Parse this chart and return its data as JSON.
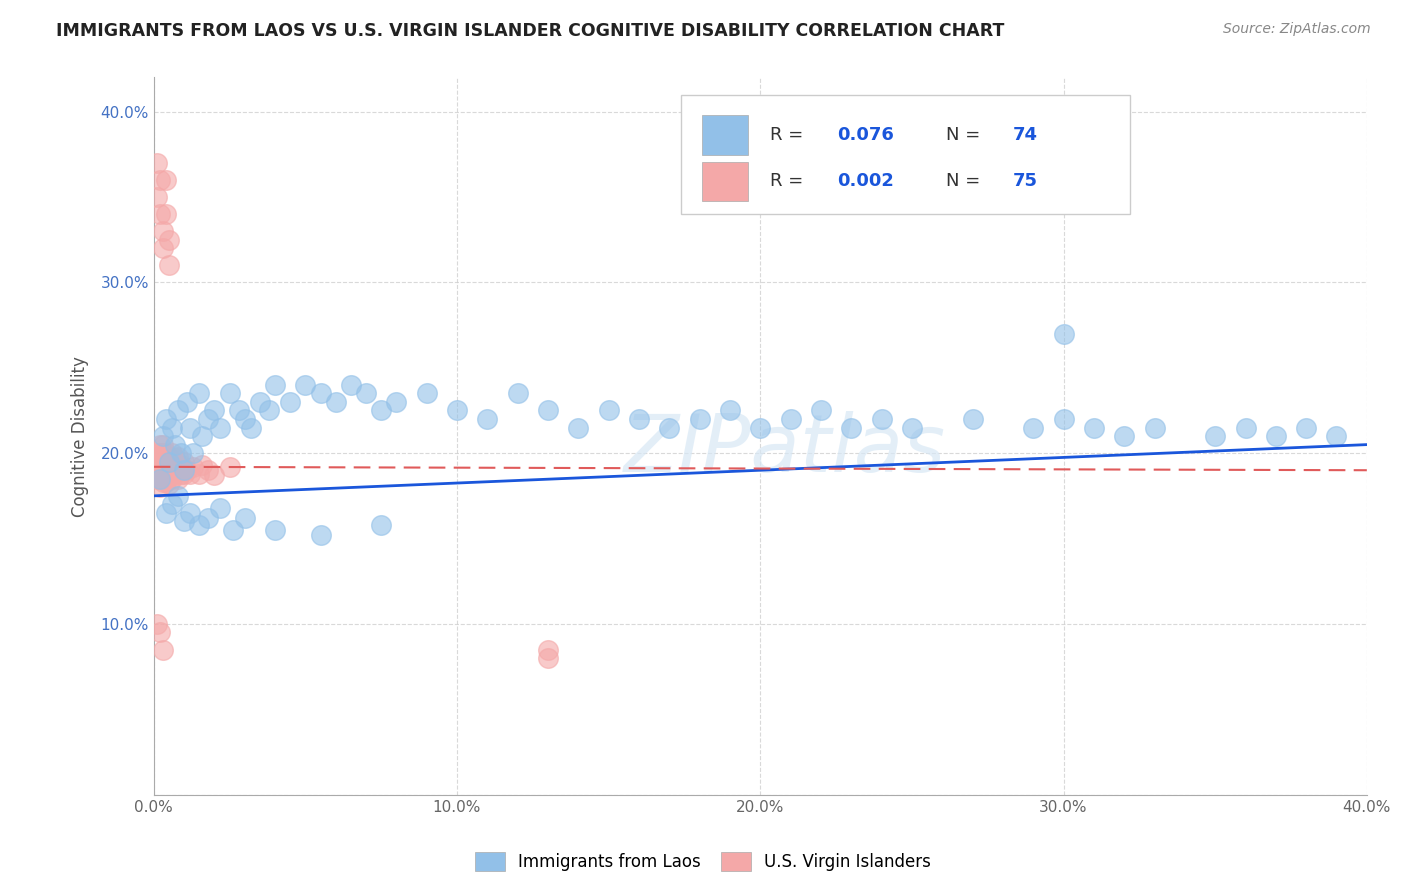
{
  "title": "IMMIGRANTS FROM LAOS VS U.S. VIRGIN ISLANDER COGNITIVE DISABILITY CORRELATION CHART",
  "source": "Source: ZipAtlas.com",
  "ylabel": "Cognitive Disability",
  "xlim": [
    0.0,
    0.4
  ],
  "ylim": [
    0.0,
    0.42
  ],
  "yticks": [
    0.0,
    0.1,
    0.2,
    0.3,
    0.4
  ],
  "xticks": [
    0.0,
    0.1,
    0.2,
    0.3,
    0.4
  ],
  "ytick_labels": [
    "",
    "10.0%",
    "20.0%",
    "30.0%",
    "40.0%"
  ],
  "xtick_labels": [
    "0.0%",
    "10.0%",
    "20.0%",
    "30.0%",
    "40.0%"
  ],
  "blue_R": 0.076,
  "blue_N": 74,
  "pink_R": 0.002,
  "pink_N": 75,
  "blue_color": "#92c0e8",
  "pink_color": "#f4a8a8",
  "blue_line_color": "#1a56db",
  "pink_line_color": "#e05a5a",
  "legend_label_blue": "Immigrants from Laos",
  "legend_label_pink": "U.S. Virgin Islanders",
  "background_color": "#ffffff",
  "grid_color": "#d0d0d0",
  "watermark_text": "ZIPatlas",
  "blue_scatter_x": [
    0.002,
    0.003,
    0.004,
    0.005,
    0.006,
    0.007,
    0.008,
    0.009,
    0.01,
    0.011,
    0.012,
    0.013,
    0.015,
    0.016,
    0.018,
    0.02,
    0.022,
    0.025,
    0.028,
    0.03,
    0.032,
    0.035,
    0.038,
    0.04,
    0.045,
    0.05,
    0.055,
    0.06,
    0.065,
    0.07,
    0.075,
    0.08,
    0.09,
    0.1,
    0.11,
    0.12,
    0.13,
    0.14,
    0.15,
    0.16,
    0.17,
    0.18,
    0.19,
    0.2,
    0.21,
    0.22,
    0.23,
    0.24,
    0.25,
    0.27,
    0.29,
    0.3,
    0.31,
    0.32,
    0.33,
    0.35,
    0.36,
    0.37,
    0.38,
    0.39,
    0.004,
    0.006,
    0.008,
    0.01,
    0.012,
    0.015,
    0.018,
    0.022,
    0.026,
    0.03,
    0.04,
    0.055,
    0.075,
    0.3
  ],
  "blue_scatter_y": [
    0.185,
    0.21,
    0.22,
    0.195,
    0.215,
    0.205,
    0.225,
    0.2,
    0.19,
    0.23,
    0.215,
    0.2,
    0.235,
    0.21,
    0.22,
    0.225,
    0.215,
    0.235,
    0.225,
    0.22,
    0.215,
    0.23,
    0.225,
    0.24,
    0.23,
    0.24,
    0.235,
    0.23,
    0.24,
    0.235,
    0.225,
    0.23,
    0.235,
    0.225,
    0.22,
    0.235,
    0.225,
    0.215,
    0.225,
    0.22,
    0.215,
    0.22,
    0.225,
    0.215,
    0.22,
    0.225,
    0.215,
    0.22,
    0.215,
    0.22,
    0.215,
    0.22,
    0.215,
    0.21,
    0.215,
    0.21,
    0.215,
    0.21,
    0.215,
    0.21,
    0.165,
    0.17,
    0.175,
    0.16,
    0.165,
    0.158,
    0.162,
    0.168,
    0.155,
    0.162,
    0.155,
    0.152,
    0.158,
    0.27
  ],
  "pink_scatter_x": [
    0.001,
    0.001,
    0.001,
    0.001,
    0.002,
    0.002,
    0.002,
    0.002,
    0.002,
    0.002,
    0.002,
    0.003,
    0.003,
    0.003,
    0.003,
    0.003,
    0.003,
    0.003,
    0.003,
    0.003,
    0.003,
    0.003,
    0.003,
    0.004,
    0.004,
    0.004,
    0.004,
    0.004,
    0.004,
    0.004,
    0.004,
    0.005,
    0.005,
    0.005,
    0.005,
    0.005,
    0.005,
    0.006,
    0.006,
    0.006,
    0.006,
    0.006,
    0.007,
    0.007,
    0.007,
    0.008,
    0.008,
    0.008,
    0.009,
    0.009,
    0.01,
    0.01,
    0.011,
    0.012,
    0.013,
    0.015,
    0.016,
    0.018,
    0.02,
    0.025,
    0.001,
    0.001,
    0.002,
    0.002,
    0.003,
    0.003,
    0.004,
    0.004,
    0.005,
    0.005,
    0.001,
    0.002,
    0.003,
    0.13,
    0.13
  ],
  "pink_scatter_y": [
    0.19,
    0.195,
    0.2,
    0.185,
    0.19,
    0.195,
    0.185,
    0.2,
    0.18,
    0.195,
    0.205,
    0.185,
    0.195,
    0.188,
    0.192,
    0.2,
    0.183,
    0.197,
    0.188,
    0.193,
    0.185,
    0.198,
    0.205,
    0.192,
    0.187,
    0.195,
    0.2,
    0.183,
    0.19,
    0.197,
    0.185,
    0.192,
    0.188,
    0.195,
    0.182,
    0.198,
    0.19,
    0.185,
    0.195,
    0.188,
    0.193,
    0.2,
    0.188,
    0.192,
    0.197,
    0.185,
    0.193,
    0.198,
    0.188,
    0.193,
    0.188,
    0.195,
    0.19,
    0.188,
    0.192,
    0.188,
    0.193,
    0.19,
    0.187,
    0.192,
    0.35,
    0.37,
    0.34,
    0.36,
    0.33,
    0.32,
    0.36,
    0.34,
    0.31,
    0.325,
    0.1,
    0.095,
    0.085,
    0.085,
    0.08
  ],
  "blue_trend_x": [
    0.0,
    0.4
  ],
  "blue_trend_y": [
    0.175,
    0.205
  ],
  "pink_trend_x": [
    0.0,
    0.4
  ],
  "pink_trend_y": [
    0.192,
    0.19
  ]
}
